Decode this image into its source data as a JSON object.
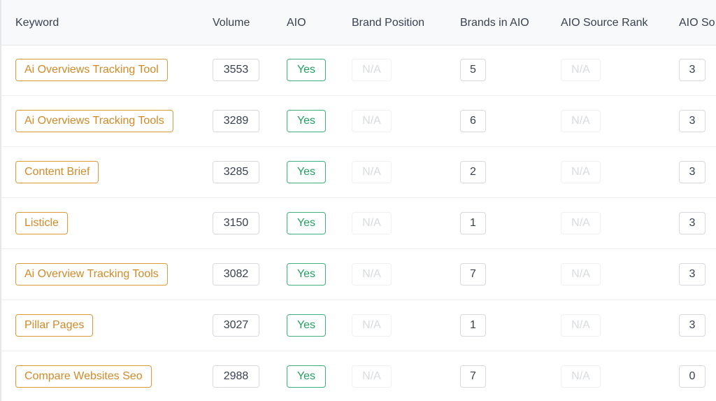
{
  "columns": {
    "keyword": "Keyword",
    "volume": "Volume",
    "aio": "AIO",
    "brand_position": "Brand Position",
    "brands_in_aio": "Brands in AIO",
    "aio_source_rank": "AIO Source Rank",
    "aio_source_truncated": "AIO So"
  },
  "rows": [
    {
      "keyword": "Ai Overviews Tracking Tool",
      "volume": "3553",
      "aio": "Yes",
      "brand_position": "N/A",
      "brands_in_aio": "5",
      "aio_source_rank": "N/A",
      "aio_source": "3"
    },
    {
      "keyword": "Ai Overviews Tracking Tools",
      "volume": "3289",
      "aio": "Yes",
      "brand_position": "N/A",
      "brands_in_aio": "6",
      "aio_source_rank": "N/A",
      "aio_source": "3"
    },
    {
      "keyword": "Content Brief",
      "volume": "3285",
      "aio": "Yes",
      "brand_position": "N/A",
      "brands_in_aio": "2",
      "aio_source_rank": "N/A",
      "aio_source": "3"
    },
    {
      "keyword": "Listicle",
      "volume": "3150",
      "aio": "Yes",
      "brand_position": "N/A",
      "brands_in_aio": "1",
      "aio_source_rank": "N/A",
      "aio_source": "3"
    },
    {
      "keyword": "Ai Overview Tracking Tools",
      "volume": "3082",
      "aio": "Yes",
      "brand_position": "N/A",
      "brands_in_aio": "7",
      "aio_source_rank": "N/A",
      "aio_source": "3"
    },
    {
      "keyword": "Pillar Pages",
      "volume": "3027",
      "aio": "Yes",
      "brand_position": "N/A",
      "brands_in_aio": "1",
      "aio_source_rank": "N/A",
      "aio_source": "3"
    },
    {
      "keyword": "Compare Websites Seo",
      "volume": "2988",
      "aio": "Yes",
      "brand_position": "N/A",
      "brands_in_aio": "7",
      "aio_source_rank": "N/A",
      "aio_source": "0"
    }
  ],
  "colors": {
    "keyword_accent": "#d08a28",
    "aio_yes": "#20a060",
    "na_muted": "#d7dbe0",
    "header_bg": "#f8f9fb"
  }
}
